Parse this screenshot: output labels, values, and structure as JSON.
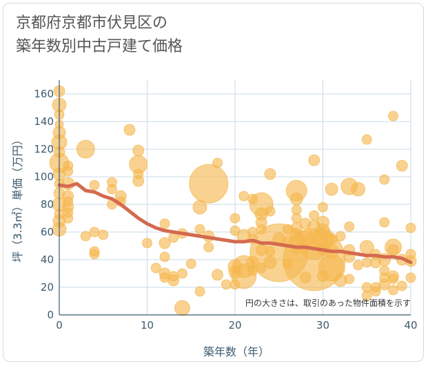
{
  "chart_data": {
    "type": "scatter",
    "title_line1": "京都府京都市伏見区の",
    "title_line2": "築年数別中古戸建て価格",
    "xlabel": "築年数（年）",
    "ylabel": "坪（3.3㎡）単価（万円）",
    "note": "円の大きさは、取引のあった物件面積を示す",
    "xlim": [
      0,
      40
    ],
    "ylim": [
      0,
      170
    ],
    "xticks": [
      0,
      10,
      20,
      30,
      40
    ],
    "yticks": [
      0,
      20,
      40,
      60,
      80,
      100,
      120,
      140,
      160
    ],
    "colors": {
      "bubble": "#f5b74e",
      "trend": "#d46a4f",
      "grid": "#c9dbe6",
      "axis": "#3c5a6e"
    },
    "trend": {
      "x": [
        0,
        1,
        2,
        3,
        4,
        5,
        6,
        7,
        8,
        9,
        10,
        11,
        12,
        13,
        14,
        15,
        16,
        17,
        18,
        19,
        20,
        21,
        22,
        23,
        24,
        25,
        26,
        27,
        28,
        29,
        30,
        31,
        32,
        33,
        34,
        35,
        36,
        37,
        38,
        39,
        40
      ],
      "y": [
        94,
        93,
        95,
        90,
        89,
        86,
        84,
        80,
        75,
        70,
        66,
        63,
        61,
        60,
        59,
        58,
        57,
        56,
        55,
        54,
        53,
        53,
        54,
        52,
        52,
        51,
        50,
        49,
        49,
        48,
        47,
        46,
        46,
        45,
        44,
        43,
        43,
        42,
        42,
        41,
        38
      ]
    },
    "points": [
      {
        "x": 0,
        "y": 162,
        "s": 8
      },
      {
        "x": 0,
        "y": 152,
        "s": 10
      },
      {
        "x": 0,
        "y": 145,
        "s": 7
      },
      {
        "x": 0,
        "y": 138,
        "s": 6
      },
      {
        "x": 0,
        "y": 132,
        "s": 9
      },
      {
        "x": 0,
        "y": 125,
        "s": 11
      },
      {
        "x": 0,
        "y": 118,
        "s": 8
      },
      {
        "x": 0,
        "y": 110,
        "s": 14
      },
      {
        "x": 0,
        "y": 102,
        "s": 9
      },
      {
        "x": 0,
        "y": 95,
        "s": 7
      },
      {
        "x": 0,
        "y": 88,
        "s": 8
      },
      {
        "x": 0,
        "y": 80,
        "s": 10
      },
      {
        "x": 0,
        "y": 73,
        "s": 7
      },
      {
        "x": 0,
        "y": 68,
        "s": 9
      },
      {
        "x": 0,
        "y": 62,
        "s": 10
      },
      {
        "x": 1,
        "y": 108,
        "s": 7
      },
      {
        "x": 1,
        "y": 104,
        "s": 7
      },
      {
        "x": 1,
        "y": 95,
        "s": 9
      },
      {
        "x": 1,
        "y": 86,
        "s": 8
      },
      {
        "x": 1,
        "y": 82,
        "s": 7
      },
      {
        "x": 1,
        "y": 78,
        "s": 8
      },
      {
        "x": 1,
        "y": 74,
        "s": 7
      },
      {
        "x": 1,
        "y": 70,
        "s": 7
      },
      {
        "x": 3,
        "y": 120,
        "s": 13
      },
      {
        "x": 3,
        "y": 57,
        "s": 7
      },
      {
        "x": 4,
        "y": 94,
        "s": 7
      },
      {
        "x": 4,
        "y": 60,
        "s": 7
      },
      {
        "x": 4,
        "y": 46,
        "s": 7
      },
      {
        "x": 4,
        "y": 44,
        "s": 7
      },
      {
        "x": 5,
        "y": 58,
        "s": 7
      },
      {
        "x": 6,
        "y": 96,
        "s": 7
      },
      {
        "x": 6,
        "y": 91,
        "s": 7
      },
      {
        "x": 6,
        "y": 80,
        "s": 7
      },
      {
        "x": 7,
        "y": 86,
        "s": 8
      },
      {
        "x": 7,
        "y": 82,
        "s": 7
      },
      {
        "x": 8,
        "y": 134,
        "s": 8
      },
      {
        "x": 9,
        "y": 119,
        "s": 8
      },
      {
        "x": 9,
        "y": 109,
        "s": 13
      },
      {
        "x": 9,
        "y": 102,
        "s": 7
      },
      {
        "x": 9,
        "y": 97,
        "s": 8
      },
      {
        "x": 10,
        "y": 52,
        "s": 7
      },
      {
        "x": 11,
        "y": 34,
        "s": 7
      },
      {
        "x": 12,
        "y": 66,
        "s": 7
      },
      {
        "x": 12,
        "y": 52,
        "s": 8
      },
      {
        "x": 12,
        "y": 42,
        "s": 7
      },
      {
        "x": 12,
        "y": 30,
        "s": 8
      },
      {
        "x": 12,
        "y": 27,
        "s": 7
      },
      {
        "x": 13,
        "y": 56,
        "s": 7
      },
      {
        "x": 13,
        "y": 28,
        "s": 7
      },
      {
        "x": 13,
        "y": 25,
        "s": 8
      },
      {
        "x": 14,
        "y": 59,
        "s": 7
      },
      {
        "x": 14,
        "y": 30,
        "s": 7
      },
      {
        "x": 14,
        "y": 5,
        "s": 11
      },
      {
        "x": 15,
        "y": 37,
        "s": 7
      },
      {
        "x": 16,
        "y": 78,
        "s": 10
      },
      {
        "x": 16,
        "y": 62,
        "s": 7
      },
      {
        "x": 16,
        "y": 17,
        "s": 7
      },
      {
        "x": 17,
        "y": 95,
        "s": 28
      },
      {
        "x": 17,
        "y": 57,
        "s": 8
      },
      {
        "x": 17,
        "y": 49,
        "s": 7
      },
      {
        "x": 18,
        "y": 110,
        "s": 7
      },
      {
        "x": 18,
        "y": 29,
        "s": 8
      },
      {
        "x": 19,
        "y": 22,
        "s": 7
      },
      {
        "x": 20,
        "y": 70,
        "s": 7
      },
      {
        "x": 20,
        "y": 61,
        "s": 7
      },
      {
        "x": 20,
        "y": 35,
        "s": 10
      },
      {
        "x": 20,
        "y": 31,
        "s": 9
      },
      {
        "x": 20,
        "y": 22,
        "s": 7
      },
      {
        "x": 21,
        "y": 86,
        "s": 7
      },
      {
        "x": 21,
        "y": 57,
        "s": 10
      },
      {
        "x": 21,
        "y": 35,
        "s": 16
      },
      {
        "x": 21,
        "y": 28,
        "s": 18
      },
      {
        "x": 22,
        "y": 84,
        "s": 7
      },
      {
        "x": 22,
        "y": 60,
        "s": 7
      },
      {
        "x": 22,
        "y": 55,
        "s": 7
      },
      {
        "x": 22,
        "y": 38,
        "s": 9
      },
      {
        "x": 22,
        "y": 32,
        "s": 7
      },
      {
        "x": 23,
        "y": 80,
        "s": 17
      },
      {
        "x": 23,
        "y": 73,
        "s": 9
      },
      {
        "x": 23,
        "y": 67,
        "s": 8
      },
      {
        "x": 23,
        "y": 62,
        "s": 7
      },
      {
        "x": 23,
        "y": 47,
        "s": 8
      },
      {
        "x": 23,
        "y": 34,
        "s": 7
      },
      {
        "x": 24,
        "y": 102,
        "s": 8
      },
      {
        "x": 24,
        "y": 75,
        "s": 7
      },
      {
        "x": 24,
        "y": 46,
        "s": 7
      },
      {
        "x": 24,
        "y": 38,
        "s": 9
      },
      {
        "x": 25,
        "y": 45,
        "s": 42
      },
      {
        "x": 25,
        "y": 55,
        "s": 9
      },
      {
        "x": 26,
        "y": 62,
        "s": 7
      },
      {
        "x": 26,
        "y": 53,
        "s": 8
      },
      {
        "x": 26,
        "y": 37,
        "s": 7
      },
      {
        "x": 27,
        "y": 90,
        "s": 15
      },
      {
        "x": 27,
        "y": 84,
        "s": 9
      },
      {
        "x": 27,
        "y": 76,
        "s": 7
      },
      {
        "x": 27,
        "y": 70,
        "s": 7
      },
      {
        "x": 27,
        "y": 63,
        "s": 8
      },
      {
        "x": 27,
        "y": 58,
        "s": 9
      },
      {
        "x": 27,
        "y": 48,
        "s": 7
      },
      {
        "x": 28,
        "y": 66,
        "s": 8
      },
      {
        "x": 28,
        "y": 55,
        "s": 12
      },
      {
        "x": 28,
        "y": 27,
        "s": 8
      },
      {
        "x": 29,
        "y": 112,
        "s": 8
      },
      {
        "x": 29,
        "y": 40,
        "s": 45
      },
      {
        "x": 29,
        "y": 50,
        "s": 20
      },
      {
        "x": 29,
        "y": 72,
        "s": 7
      },
      {
        "x": 29,
        "y": 64,
        "s": 9
      },
      {
        "x": 30,
        "y": 78,
        "s": 7
      },
      {
        "x": 30,
        "y": 67,
        "s": 9
      },
      {
        "x": 30,
        "y": 61,
        "s": 10
      },
      {
        "x": 30,
        "y": 55,
        "s": 16
      },
      {
        "x": 30,
        "y": 48,
        "s": 9
      },
      {
        "x": 30,
        "y": 28,
        "s": 8
      },
      {
        "x": 31,
        "y": 91,
        "s": 9
      },
      {
        "x": 31,
        "y": 55,
        "s": 8
      },
      {
        "x": 31,
        "y": 46,
        "s": 10
      },
      {
        "x": 31,
        "y": 34,
        "s": 19
      },
      {
        "x": 32,
        "y": 57,
        "s": 7
      },
      {
        "x": 32,
        "y": 25,
        "s": 9
      },
      {
        "x": 33,
        "y": 93,
        "s": 12
      },
      {
        "x": 33,
        "y": 64,
        "s": 7
      },
      {
        "x": 33,
        "y": 47,
        "s": 8
      },
      {
        "x": 33,
        "y": 42,
        "s": 8
      },
      {
        "x": 33,
        "y": 26,
        "s": 7
      },
      {
        "x": 34,
        "y": 91,
        "s": 10
      },
      {
        "x": 34,
        "y": 36,
        "s": 7
      },
      {
        "x": 35,
        "y": 127,
        "s": 7
      },
      {
        "x": 35,
        "y": 49,
        "s": 10
      },
      {
        "x": 35,
        "y": 38,
        "s": 7
      },
      {
        "x": 35,
        "y": 20,
        "s": 7
      },
      {
        "x": 35,
        "y": 14,
        "s": 7
      },
      {
        "x": 36,
        "y": 44,
        "s": 7
      },
      {
        "x": 36,
        "y": 38,
        "s": 8
      },
      {
        "x": 36,
        "y": 20,
        "s": 7
      },
      {
        "x": 36,
        "y": 17,
        "s": 7
      },
      {
        "x": 37,
        "y": 98,
        "s": 7
      },
      {
        "x": 37,
        "y": 67,
        "s": 7
      },
      {
        "x": 37,
        "y": 40,
        "s": 9
      },
      {
        "x": 37,
        "y": 32,
        "s": 7
      },
      {
        "x": 37,
        "y": 27,
        "s": 7
      },
      {
        "x": 37,
        "y": 22,
        "s": 8
      },
      {
        "x": 38,
        "y": 144,
        "s": 7
      },
      {
        "x": 38,
        "y": 49,
        "s": 12
      },
      {
        "x": 38,
        "y": 47,
        "s": 8
      },
      {
        "x": 38,
        "y": 28,
        "s": 8
      },
      {
        "x": 38,
        "y": 26,
        "s": 7
      },
      {
        "x": 38,
        "y": 18,
        "s": 7
      },
      {
        "x": 39,
        "y": 108,
        "s": 8
      },
      {
        "x": 39,
        "y": 40,
        "s": 8
      },
      {
        "x": 39,
        "y": 21,
        "s": 7
      },
      {
        "x": 40,
        "y": 63,
        "s": 7
      },
      {
        "x": 40,
        "y": 44,
        "s": 7
      },
      {
        "x": 40,
        "y": 39,
        "s": 8
      },
      {
        "x": 40,
        "y": 27,
        "s": 7
      }
    ]
  }
}
